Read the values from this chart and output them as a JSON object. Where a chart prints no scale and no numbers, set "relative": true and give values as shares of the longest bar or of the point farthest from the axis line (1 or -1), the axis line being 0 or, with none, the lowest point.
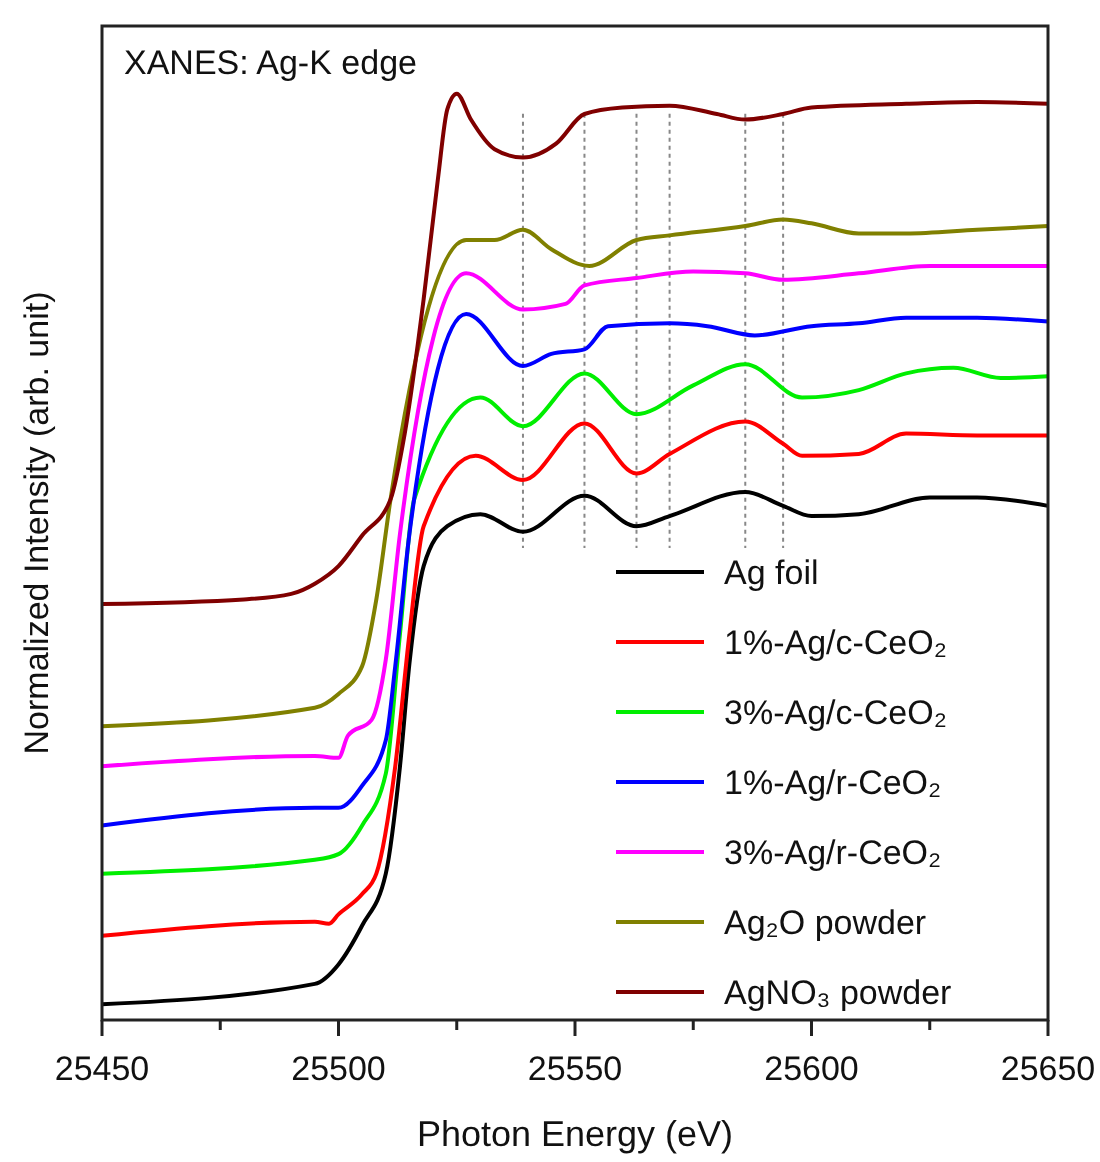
{
  "chart_data": {
    "type": "line",
    "title": "XANES: Ag-K edge",
    "xlabel": "Photon Energy (eV)",
    "ylabel": "Normalized Intensity (arb. unit)",
    "relative": true,
    "xlim": [
      25450,
      25650
    ],
    "xticks": [
      25450,
      {
        "value": 25475,
        "label": null
      },
      25500,
      {
        "value": 25525,
        "label": null
      },
      25550,
      {
        "value": 25575,
        "label": null
      },
      25600,
      {
        "value": 25625,
        "label": null
      },
      25650
    ],
    "legend": "bottom right",
    "series": [
      {
        "name": "Ag foil",
        "color": "#000000",
        "x": [
          25450,
          25495,
          25500,
          25505,
          25510,
          25513,
          25515,
          25518,
          25523,
          25530,
          25539,
          25552,
          25563,
          25570,
          25586,
          25594,
          25600,
          25610,
          25625,
          25635,
          25650
        ],
        "values": [
          0.017,
          0.039,
          0.06,
          0.102,
          0.158,
          0.274,
          0.385,
          0.49,
          0.533,
          0.546,
          0.527,
          0.566,
          0.533,
          0.544,
          0.57,
          0.555,
          0.544,
          0.546,
          0.564,
          0.564,
          0.555
        ]
      },
      {
        "name": "1%-Ag/c-CeO₂",
        "color": "#ff0000",
        "x": [
          25450,
          25495,
          25498,
          25500,
          25505,
          25508,
          25512,
          25515,
          25518,
          25529,
          25539,
          25552,
          25563,
          25570,
          25586,
          25594,
          25598,
          25610,
          25620,
          25635,
          25650
        ],
        "values": [
          0.091,
          0.106,
          0.104,
          0.114,
          0.136,
          0.158,
          0.274,
          0.417,
          0.533,
          0.609,
          0.583,
          0.644,
          0.59,
          0.611,
          0.646,
          0.622,
          0.609,
          0.611,
          0.633,
          0.631,
          0.631
        ]
      },
      {
        "name": "3%-Ag/c-CeO₂",
        "color": "#00ee00",
        "x": [
          25450,
          25495,
          25500,
          25505,
          25510,
          25513,
          25516,
          25530,
          25539,
          25552,
          25563,
          25575,
          25586,
          25598,
          25610,
          25620,
          25630,
          25640,
          25650
        ],
        "values": [
          0.158,
          0.173,
          0.179,
          0.21,
          0.266,
          0.417,
          0.562,
          0.672,
          0.641,
          0.698,
          0.654,
          0.685,
          0.708,
          0.672,
          0.68,
          0.698,
          0.704,
          0.693,
          0.695
        ]
      },
      {
        "name": "1%-Ag/r-CeO₂",
        "color": "#0000ff",
        "x": [
          25450,
          25495,
          25500,
          25505,
          25510,
          25512,
          25515,
          25527,
          25539,
          25545,
          25552,
          25557,
          25570,
          25578,
          25588,
          25600,
          25610,
          25620,
          25635,
          25650
        ],
        "values": [
          0.21,
          0.229,
          0.229,
          0.253,
          0.302,
          0.382,
          0.525,
          0.762,
          0.706,
          0.719,
          0.724,
          0.749,
          0.752,
          0.749,
          0.739,
          0.749,
          0.752,
          0.758,
          0.758,
          0.754
        ]
      },
      {
        "name": "3%-Ag/r-CeO₂",
        "color": "#ff00ff",
        "x": [
          25450,
          25495,
          25500,
          25502,
          25507,
          25510,
          25513,
          25527,
          25539,
          25548,
          25552,
          25563,
          25575,
          25586,
          25594,
          25610,
          25625,
          25650
        ],
        "values": [
          0.274,
          0.285,
          0.283,
          0.307,
          0.324,
          0.389,
          0.525,
          0.806,
          0.767,
          0.773,
          0.793,
          0.801,
          0.808,
          0.806,
          0.799,
          0.806,
          0.814,
          0.814
        ]
      },
      {
        "name": "Ag₂O powder",
        "color": "#808000",
        "x": [
          25450,
          25495,
          25500,
          25505,
          25508,
          25511,
          25527,
          25533,
          25539,
          25545,
          25553,
          25563,
          25570,
          25586,
          25594,
          25600,
          25610,
          25620,
          25635,
          25650
        ],
        "values": [
          0.317,
          0.337,
          0.352,
          0.382,
          0.454,
          0.562,
          0.842,
          0.842,
          0.853,
          0.832,
          0.814,
          0.842,
          0.847,
          0.857,
          0.864,
          0.86,
          0.849,
          0.849,
          0.853,
          0.857
        ]
      },
      {
        "name": "AgNO₃ powder",
        "color": "#800000",
        "x": [
          25450,
          25480,
          25490,
          25495,
          25500,
          25505,
          25511,
          25514,
          25518,
          25521,
          25523,
          25525,
          25528,
          25533,
          25539,
          25546,
          25552,
          25560,
          25570,
          25580,
          25586,
          25594,
          25600,
          25620,
          25635,
          25650
        ],
        "values": [
          0.449,
          0.454,
          0.46,
          0.471,
          0.49,
          0.523,
          0.562,
          0.633,
          0.778,
          0.907,
          0.983,
          1,
          0.972,
          0.94,
          0.931,
          0.946,
          0.978,
          0.985,
          0.987,
          0.978,
          0.972,
          0.978,
          0.985,
          0.989,
          0.991,
          0.989
        ]
      }
    ],
    "ref_lines": [
      {
        "axis": "x",
        "value": 25539,
        "color": "#888888",
        "line_style": "dotted"
      },
      {
        "axis": "x",
        "value": 25552,
        "color": "#888888",
        "line_style": "dotted"
      },
      {
        "axis": "x",
        "value": 25563,
        "color": "#888888",
        "line_style": "dotted"
      },
      {
        "axis": "x",
        "value": 25570,
        "color": "#888888",
        "line_style": "dotted"
      },
      {
        "axis": "x",
        "value": 25586,
        "color": "#888888",
        "line_style": "dotted"
      },
      {
        "axis": "x",
        "value": 25594,
        "color": "#888888",
        "line_style": "dotted"
      }
    ]
  }
}
